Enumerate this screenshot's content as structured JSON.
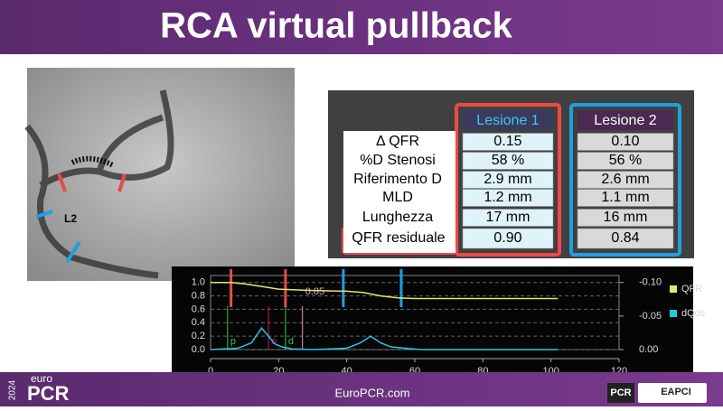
{
  "header": {
    "title": "RCA virtual pullback"
  },
  "image": {
    "labels": [
      "L2"
    ]
  },
  "table": {
    "columns": [
      "Lesione 1",
      "Lesione 2"
    ],
    "rows": [
      {
        "label": "Δ QFR",
        "cells": [
          "0.15",
          "0.10"
        ]
      },
      {
        "label": "%D Stenosi",
        "cells": [
          "58 %",
          "56 %"
        ]
      },
      {
        "label": "Riferimento D",
        "cells": [
          "2.9 mm",
          "2.6 mm"
        ]
      },
      {
        "label": "MLD",
        "cells": [
          "1.2 mm",
          "1.1 mm"
        ]
      },
      {
        "label": "Lunghezza",
        "cells": [
          "17 mm",
          "16 mm"
        ]
      },
      {
        "label": "QFR residuale",
        "cells": [
          "0.90",
          "0.84"
        ]
      }
    ]
  },
  "chart_data": {
    "type": "line",
    "xlim": [
      0,
      120
    ],
    "xticks": [
      0,
      20,
      40,
      60,
      80,
      100,
      120
    ],
    "ylim": [
      0,
      1.05
    ],
    "yticks": [
      {
        "value": 0,
        "label": "0.0"
      },
      0.2,
      0.4,
      0.6,
      0.8,
      {
        "value": 1,
        "label": "1.0"
      }
    ],
    "y2lim": [
      0,
      -0.105
    ],
    "y2ticks": [
      {
        "value": -0.1,
        "label": "-0.10"
      },
      {
        "value": -0.05,
        "label": "-0.05"
      },
      {
        "value": 0,
        "label": "0.00"
      }
    ],
    "grid": true,
    "legend": "right",
    "series": [
      {
        "name": "QFR",
        "color": "#e6e66a",
        "x": [
          0,
          6,
          10,
          15,
          20,
          25,
          30,
          40,
          45,
          50,
          55,
          60,
          102
        ],
        "values": [
          1.0,
          1.0,
          0.98,
          0.94,
          0.9,
          0.89,
          0.88,
          0.87,
          0.85,
          0.8,
          0.77,
          0.76,
          0.76
        ]
      },
      {
        "name": "dQds",
        "color": "#22c8e6",
        "axis": "y2",
        "x": [
          0,
          8,
          12,
          15,
          17,
          19,
          21,
          24,
          30,
          40,
          44,
          47,
          50,
          53,
          57,
          62,
          102
        ],
        "values": [
          0,
          -0.002,
          -0.01,
          -0.032,
          -0.02,
          -0.008,
          -0.004,
          -0.001,
          0,
          -0.002,
          -0.01,
          -0.02,
          -0.01,
          -0.004,
          -0.002,
          0,
          0
        ]
      }
    ],
    "markers": [
      {
        "x": 6,
        "color": "#e84a4a"
      },
      {
        "x": 22,
        "color": "#e84a4a"
      },
      {
        "x": 39,
        "color": "#1ea0e0"
      },
      {
        "x": 56,
        "color": "#1ea0e0"
      },
      {
        "x": 5,
        "color": "#3cc060",
        "label": "p"
      },
      {
        "x": 17,
        "color": "#c02060",
        "label": "o"
      },
      {
        "x": 22,
        "color": "#3cc060",
        "label": "d"
      },
      {
        "x": 27,
        "color": "#d8a0d0",
        "label": "0.85"
      }
    ]
  },
  "footer": {
    "url": "EuroPCR.com",
    "year": "2024",
    "brand_top": "euro",
    "brand": "PCR",
    "logo1": "PCR",
    "logo2": "EAPCI"
  }
}
